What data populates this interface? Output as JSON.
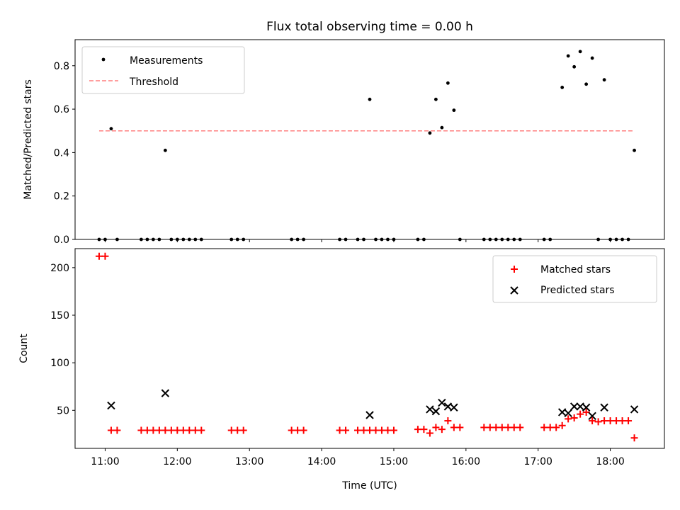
{
  "chart_data": [
    {
      "type": "scatter",
      "title": "Flux total observing time = 0.00 h",
      "xlabel": "",
      "ylabel": "Matched/Predicted stars",
      "xlim": [
        "10:35",
        "18:45"
      ],
      "ylim": [
        0,
        0.92
      ],
      "yticks": [
        0.0,
        0.2,
        0.4,
        0.6,
        0.8
      ],
      "ytick_labels": [
        "0.0",
        "0.2",
        "0.4",
        "0.6",
        "0.8"
      ],
      "legend_position": "top-left",
      "series": [
        {
          "name": "Measurements",
          "marker": "dot",
          "color": "#000000",
          "points": [
            {
              "x": "10:55",
              "y": 0
            },
            {
              "x": "11:00",
              "y": 0
            },
            {
              "x": "11:05",
              "y": 0.51
            },
            {
              "x": "11:10",
              "y": 0
            },
            {
              "x": "11:30",
              "y": 0
            },
            {
              "x": "11:35",
              "y": 0
            },
            {
              "x": "11:40",
              "y": 0
            },
            {
              "x": "11:45",
              "y": 0
            },
            {
              "x": "11:50",
              "y": 0.41
            },
            {
              "x": "11:55",
              "y": 0
            },
            {
              "x": "12:00",
              "y": 0
            },
            {
              "x": "12:05",
              "y": 0
            },
            {
              "x": "12:10",
              "y": 0
            },
            {
              "x": "12:15",
              "y": 0
            },
            {
              "x": "12:20",
              "y": 0
            },
            {
              "x": "12:45",
              "y": 0
            },
            {
              "x": "12:50",
              "y": 0
            },
            {
              "x": "12:55",
              "y": 0
            },
            {
              "x": "13:35",
              "y": 0
            },
            {
              "x": "13:40",
              "y": 0
            },
            {
              "x": "13:45",
              "y": 0
            },
            {
              "x": "14:15",
              "y": 0
            },
            {
              "x": "14:20",
              "y": 0
            },
            {
              "x": "14:30",
              "y": 0
            },
            {
              "x": "14:35",
              "y": 0
            },
            {
              "x": "14:40",
              "y": 0.645
            },
            {
              "x": "14:45",
              "y": 0
            },
            {
              "x": "14:50",
              "y": 0
            },
            {
              "x": "14:55",
              "y": 0
            },
            {
              "x": "15:00",
              "y": 0
            },
            {
              "x": "15:20",
              "y": 0
            },
            {
              "x": "15:25",
              "y": 0
            },
            {
              "x": "15:30",
              "y": 0.49
            },
            {
              "x": "15:35",
              "y": 0.645
            },
            {
              "x": "15:40",
              "y": 0.515
            },
            {
              "x": "15:45",
              "y": 0.72
            },
            {
              "x": "15:50",
              "y": 0.595
            },
            {
              "x": "15:55",
              "y": 0
            },
            {
              "x": "16:15",
              "y": 0
            },
            {
              "x": "16:20",
              "y": 0
            },
            {
              "x": "16:25",
              "y": 0
            },
            {
              "x": "16:30",
              "y": 0
            },
            {
              "x": "16:35",
              "y": 0
            },
            {
              "x": "16:40",
              "y": 0
            },
            {
              "x": "16:45",
              "y": 0
            },
            {
              "x": "17:05",
              "y": 0
            },
            {
              "x": "17:10",
              "y": 0
            },
            {
              "x": "17:20",
              "y": 0.7
            },
            {
              "x": "17:25",
              "y": 0.845
            },
            {
              "x": "17:30",
              "y": 0.795
            },
            {
              "x": "17:35",
              "y": 0.865
            },
            {
              "x": "17:40",
              "y": 0.715
            },
            {
              "x": "17:45",
              "y": 0.835
            },
            {
              "x": "17:50",
              "y": 0
            },
            {
              "x": "17:55",
              "y": 0.735
            },
            {
              "x": "18:00",
              "y": 0
            },
            {
              "x": "18:05",
              "y": 0
            },
            {
              "x": "18:10",
              "y": 0
            },
            {
              "x": "18:15",
              "y": 0
            },
            {
              "x": "18:20",
              "y": 0.41
            }
          ]
        },
        {
          "name": "Threshold",
          "marker": "dashed-line",
          "color": "#ff7f7f",
          "points": [
            {
              "x": "10:55",
              "y": 0.5
            },
            {
              "x": "18:20",
              "y": 0.5
            }
          ]
        }
      ]
    },
    {
      "type": "scatter",
      "title": "",
      "xlabel": "Time (UTC)",
      "ylabel": "Count",
      "xlim": [
        "10:35",
        "18:45"
      ],
      "ylim": [
        10,
        220
      ],
      "yticks": [
        50,
        100,
        150,
        200
      ],
      "ytick_labels": [
        "50",
        "100",
        "150",
        "200"
      ],
      "xticks": [
        "11:00",
        "12:00",
        "13:00",
        "14:00",
        "15:00",
        "16:00",
        "17:00",
        "18:00"
      ],
      "xtick_labels": [
        "11:00",
        "12:00",
        "13:00",
        "14:00",
        "15:00",
        "16:00",
        "17:00",
        "18:00"
      ],
      "legend_position": "top-right",
      "series": [
        {
          "name": "Matched stars",
          "marker": "plus",
          "color": "#ff0000",
          "points": [
            {
              "x": "10:55",
              "y": 212
            },
            {
              "x": "11:00",
              "y": 212
            },
            {
              "x": "11:05",
              "y": 29
            },
            {
              "x": "11:10",
              "y": 29
            },
            {
              "x": "11:30",
              "y": 29
            },
            {
              "x": "11:35",
              "y": 29
            },
            {
              "x": "11:40",
              "y": 29
            },
            {
              "x": "11:45",
              "y": 29
            },
            {
              "x": "11:50",
              "y": 29
            },
            {
              "x": "11:55",
              "y": 29
            },
            {
              "x": "12:00",
              "y": 29
            },
            {
              "x": "12:05",
              "y": 29
            },
            {
              "x": "12:10",
              "y": 29
            },
            {
              "x": "12:15",
              "y": 29
            },
            {
              "x": "12:20",
              "y": 29
            },
            {
              "x": "12:45",
              "y": 29
            },
            {
              "x": "12:50",
              "y": 29
            },
            {
              "x": "12:55",
              "y": 29
            },
            {
              "x": "13:35",
              "y": 29
            },
            {
              "x": "13:40",
              "y": 29
            },
            {
              "x": "13:45",
              "y": 29
            },
            {
              "x": "14:15",
              "y": 29
            },
            {
              "x": "14:20",
              "y": 29
            },
            {
              "x": "14:30",
              "y": 29
            },
            {
              "x": "14:35",
              "y": 29
            },
            {
              "x": "14:40",
              "y": 29
            },
            {
              "x": "14:45",
              "y": 29
            },
            {
              "x": "14:50",
              "y": 29
            },
            {
              "x": "14:55",
              "y": 29
            },
            {
              "x": "15:00",
              "y": 29
            },
            {
              "x": "15:20",
              "y": 30
            },
            {
              "x": "15:25",
              "y": 30
            },
            {
              "x": "15:30",
              "y": 26
            },
            {
              "x": "15:35",
              "y": 32
            },
            {
              "x": "15:40",
              "y": 30
            },
            {
              "x": "15:45",
              "y": 39
            },
            {
              "x": "15:50",
              "y": 32
            },
            {
              "x": "15:55",
              "y": 32
            },
            {
              "x": "16:15",
              "y": 32
            },
            {
              "x": "16:20",
              "y": 32
            },
            {
              "x": "16:25",
              "y": 32
            },
            {
              "x": "16:30",
              "y": 32
            },
            {
              "x": "16:35",
              "y": 32
            },
            {
              "x": "16:40",
              "y": 32
            },
            {
              "x": "16:45",
              "y": 32
            },
            {
              "x": "17:05",
              "y": 32
            },
            {
              "x": "17:10",
              "y": 32
            },
            {
              "x": "17:15",
              "y": 32
            },
            {
              "x": "17:20",
              "y": 34
            },
            {
              "x": "17:25",
              "y": 41
            },
            {
              "x": "17:30",
              "y": 42
            },
            {
              "x": "17:35",
              "y": 46
            },
            {
              "x": "17:40",
              "y": 48
            },
            {
              "x": "17:45",
              "y": 39
            },
            {
              "x": "17:50",
              "y": 38
            },
            {
              "x": "17:55",
              "y": 39
            },
            {
              "x": "18:00",
              "y": 39
            },
            {
              "x": "18:05",
              "y": 39
            },
            {
              "x": "18:10",
              "y": 39
            },
            {
              "x": "18:15",
              "y": 39
            },
            {
              "x": "18:20",
              "y": 21
            }
          ]
        },
        {
          "name": "Predicted stars",
          "marker": "x",
          "color": "#000000",
          "points": [
            {
              "x": "11:05",
              "y": 55
            },
            {
              "x": "11:50",
              "y": 68
            },
            {
              "x": "14:40",
              "y": 45
            },
            {
              "x": "15:30",
              "y": 51
            },
            {
              "x": "15:35",
              "y": 49
            },
            {
              "x": "15:40",
              "y": 58
            },
            {
              "x": "15:45",
              "y": 54
            },
            {
              "x": "15:50",
              "y": 53
            },
            {
              "x": "17:20",
              "y": 48
            },
            {
              "x": "17:25",
              "y": 47
            },
            {
              "x": "17:30",
              "y": 54
            },
            {
              "x": "17:35",
              "y": 54
            },
            {
              "x": "17:40",
              "y": 53
            },
            {
              "x": "17:45",
              "y": 44
            },
            {
              "x": "17:55",
              "y": 53
            },
            {
              "x": "18:20",
              "y": 51
            }
          ]
        }
      ]
    }
  ]
}
